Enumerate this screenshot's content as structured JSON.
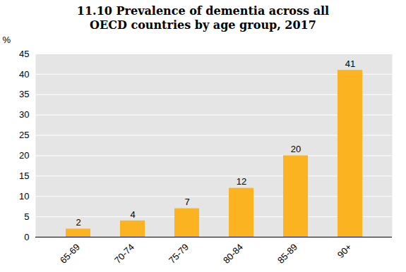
{
  "chart_data": {
    "type": "bar",
    "title": "11.10 Prevalence of dementia across all OECD countries by age group, 2017",
    "y_label": "%",
    "categories": [
      "65-69",
      "70-74",
      "75-79",
      "80-84",
      "85-89",
      "90+"
    ],
    "values": [
      2,
      4,
      7,
      12,
      20,
      41
    ],
    "color": "#fbb321",
    "ylim": [
      0,
      45
    ],
    "yticks": [
      0,
      5,
      10,
      15,
      20,
      25,
      30,
      35,
      40,
      45
    ],
    "grid": true,
    "data_labels": true
  }
}
